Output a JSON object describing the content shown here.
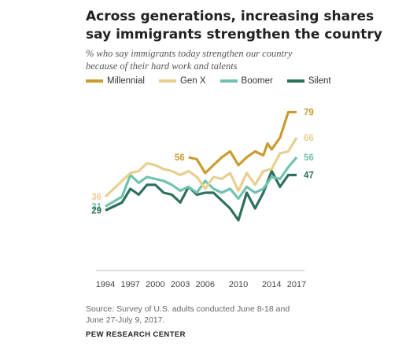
{
  "title_line1": "Across generations, increasing shares",
  "title_line2": "say immigrants strengthen the country",
  "subtitle_line1": "% who say immigrants today strengthen our country",
  "subtitle_line2": "because of their hard work and talents",
  "source_line1": "Source: Survey of U.S. adults conducted June 8-18 and",
  "source_line2": "June 27-July 9, 2017.",
  "brand": "PEW RESEARCH CENTER",
  "chart_data": {
    "type": "line",
    "xlim": [
      1994,
      2017
    ],
    "ylim": [
      0,
      100
    ],
    "xticks": [
      "1994",
      "1997",
      "2000",
      "2003",
      "2006",
      "2010",
      "2014",
      "2017"
    ],
    "grid": false,
    "legend": "top",
    "series": [
      {
        "name": "Millennial",
        "color": "#c89c2e",
        "start_label": "56",
        "end_label": "79",
        "points": [
          [
            2004,
            56
          ],
          [
            2005,
            55
          ],
          [
            2006,
            48
          ],
          [
            2007,
            52
          ],
          [
            2008,
            56
          ],
          [
            2009,
            59
          ],
          [
            2010,
            52
          ],
          [
            2011,
            56
          ],
          [
            2012,
            59
          ],
          [
            2013,
            57
          ],
          [
            2013.5,
            63
          ],
          [
            2014,
            60
          ],
          [
            2015,
            66
          ],
          [
            2016,
            79
          ],
          [
            2017,
            79
          ]
        ]
      },
      {
        "name": "Gen X",
        "color": "#e8cf8f",
        "start_label": "36",
        "end_label": "66",
        "points": [
          [
            1994,
            36
          ],
          [
            1996,
            44
          ],
          [
            1997,
            48
          ],
          [
            1998,
            49
          ],
          [
            1999,
            53
          ],
          [
            2000,
            52
          ],
          [
            2001,
            50
          ],
          [
            2002,
            49
          ],
          [
            2003,
            47
          ],
          [
            2004,
            49
          ],
          [
            2005,
            46
          ],
          [
            2006,
            40
          ],
          [
            2007,
            46
          ],
          [
            2008,
            45
          ],
          [
            2009,
            48
          ],
          [
            2010,
            39
          ],
          [
            2011,
            48
          ],
          [
            2012,
            42
          ],
          [
            2013,
            49
          ],
          [
            2014,
            50
          ],
          [
            2015,
            58
          ],
          [
            2016,
            59
          ],
          [
            2017,
            66
          ]
        ]
      },
      {
        "name": "Boomer",
        "color": "#6fc3ae",
        "start_label": "31",
        "end_label": "56",
        "points": [
          [
            1994,
            31
          ],
          [
            1996,
            36
          ],
          [
            1997,
            47
          ],
          [
            1998,
            43
          ],
          [
            1999,
            46
          ],
          [
            2000,
            45
          ],
          [
            2001,
            44
          ],
          [
            2002,
            42
          ],
          [
            2003,
            39
          ],
          [
            2004,
            41
          ],
          [
            2005,
            38
          ],
          [
            2006,
            44
          ],
          [
            2007,
            40
          ],
          [
            2008,
            38
          ],
          [
            2009,
            40
          ],
          [
            2010,
            35
          ],
          [
            2011,
            41
          ],
          [
            2012,
            38
          ],
          [
            2013,
            40
          ],
          [
            2014,
            46
          ],
          [
            2015,
            45
          ],
          [
            2016,
            51
          ],
          [
            2017,
            56
          ]
        ]
      },
      {
        "name": "Silent",
        "color": "#2f6f5e",
        "start_label": "29",
        "end_label": "47",
        "points": [
          [
            1994,
            29
          ],
          [
            1996,
            33
          ],
          [
            1997,
            40
          ],
          [
            1998,
            37
          ],
          [
            1999,
            42
          ],
          [
            2000,
            42
          ],
          [
            2001,
            38
          ],
          [
            2002,
            37
          ],
          [
            2003,
            33
          ],
          [
            2004,
            41
          ],
          [
            2005,
            37
          ],
          [
            2006,
            38
          ],
          [
            2007,
            38
          ],
          [
            2008,
            34
          ],
          [
            2009,
            30
          ],
          [
            2010,
            24
          ],
          [
            2011,
            38
          ],
          [
            2012,
            30
          ],
          [
            2013,
            38
          ],
          [
            2014,
            49
          ],
          [
            2015,
            41
          ],
          [
            2016,
            47
          ],
          [
            2017,
            47
          ]
        ]
      }
    ]
  }
}
